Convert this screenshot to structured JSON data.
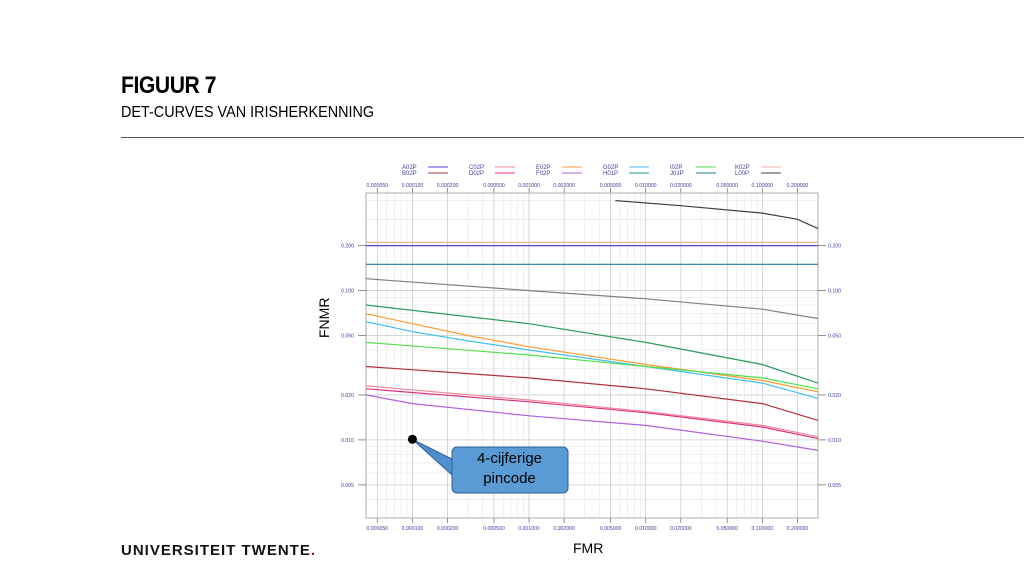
{
  "slide": {
    "title": "FIGUUR 7",
    "subtitle": "DET-CURVES VAN IRISHERKENNING",
    "logo_text": "UNIVERSITEIT TWENTE",
    "logo_dot": "."
  },
  "chart_data": {
    "type": "line",
    "xlabel": "FMR",
    "ylabel": "FNMR",
    "x_scale": "log",
    "y_scale": "log",
    "xlim": [
      4e-05,
      0.3
    ],
    "ylim": [
      0.003,
      0.45
    ],
    "grid": true,
    "legend_position": "top",
    "x_ticks": [
      "0.000050",
      "0.000100",
      "0.000200",
      "0.000500",
      "0.001000",
      "0.002000",
      "0.005000",
      "0.010000",
      "0.020000",
      "0.050000",
      "0.100000",
      "0.200000"
    ],
    "y_ticks": [
      "0.200",
      "0.100",
      "0.050",
      "0.020",
      "0.010",
      "0.005"
    ],
    "series": [
      {
        "name": "A02P",
        "color": "#5a3fd0",
        "x": [
          4e-05,
          0.3
        ],
        "y": [
          0.2,
          0.2
        ]
      },
      {
        "name": "B02P",
        "color": "#b0303a",
        "x": [
          4e-05,
          0.001,
          0.01,
          0.1,
          0.3
        ],
        "y": [
          0.031,
          0.026,
          0.022,
          0.0175,
          0.0135
        ]
      },
      {
        "name": "C02P",
        "color": "#f08a9a",
        "x": [
          4e-05,
          0.001,
          0.01,
          0.1,
          0.3
        ],
        "y": [
          0.023,
          0.0185,
          0.0155,
          0.0125,
          0.0105
        ]
      },
      {
        "name": "D02P",
        "color": "#e03080",
        "x": [
          4e-05,
          0.001,
          0.01,
          0.1,
          0.3
        ],
        "y": [
          0.022,
          0.018,
          0.0152,
          0.0122,
          0.0102
        ]
      },
      {
        "name": "E02P",
        "color": "#ff9a30",
        "x": [
          4e-05,
          0.0001,
          0.0003,
          0.001,
          0.01,
          0.1,
          0.3
        ],
        "y": [
          0.07,
          0.06,
          0.05,
          0.042,
          0.032,
          0.025,
          0.021
        ]
      },
      {
        "name": "F02P",
        "color": "#b060e0",
        "x": [
          4e-05,
          0.0001,
          0.001,
          0.01,
          0.1,
          0.3
        ],
        "y": [
          0.02,
          0.0175,
          0.0145,
          0.0125,
          0.0098,
          0.0085
        ]
      },
      {
        "name": "G02P",
        "color": "#40c0f0",
        "x": [
          4e-05,
          0.0001,
          0.0003,
          0.001,
          0.01,
          0.1,
          0.3
        ],
        "y": [
          0.062,
          0.053,
          0.046,
          0.04,
          0.031,
          0.024,
          0.019
        ]
      },
      {
        "name": "H01P",
        "color": "#2a9a60",
        "x": [
          4e-05,
          0.001,
          0.01,
          0.1,
          0.3
        ],
        "y": [
          0.08,
          0.06,
          0.045,
          0.032,
          0.024
        ]
      },
      {
        "name": "I02P",
        "color": "#50e050",
        "x": [
          4e-05,
          0.001,
          0.01,
          0.1,
          0.3
        ],
        "y": [
          0.045,
          0.037,
          0.031,
          0.026,
          0.022
        ]
      },
      {
        "name": "J01P",
        "color": "#2a7a9a",
        "x": [
          4e-05,
          0.3
        ],
        "y": [
          0.15,
          0.15
        ]
      },
      {
        "name": "K02P",
        "color": "#f0b0a0",
        "x": [
          4e-05,
          0.3
        ],
        "y": [
          0.21,
          0.21
        ]
      },
      {
        "name": "L00P",
        "color": "#404040",
        "x": [
          0.0055,
          0.02,
          0.1,
          0.2,
          0.3
        ],
        "y": [
          0.4,
          0.37,
          0.33,
          0.3,
          0.26
        ]
      },
      {
        "name": "",
        "color": "#808080",
        "x": [
          4e-05,
          0.001,
          0.01,
          0.1,
          0.3
        ],
        "y": [
          0.12,
          0.1,
          0.088,
          0.075,
          0.065
        ]
      }
    ],
    "annotation": {
      "text_line1": "4-cijferige",
      "text_line2": "pincode",
      "point": {
        "x": 0.0001,
        "y": 0.0101
      }
    }
  }
}
